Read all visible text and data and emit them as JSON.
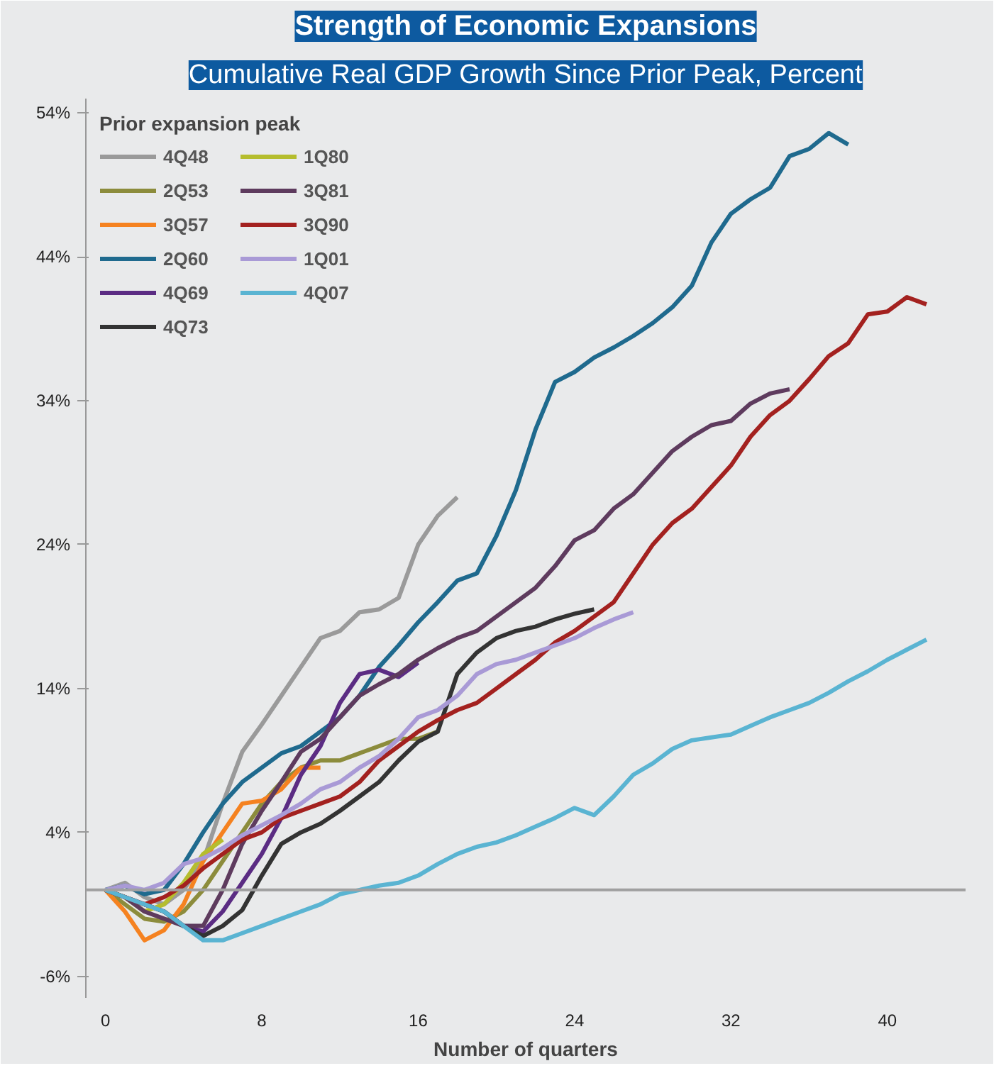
{
  "chart_data": {
    "type": "line",
    "title": "Strength of Economic Expansions",
    "subtitle": "Cumulative Real GDP Growth Since Prior Peak, Percent",
    "xlabel": "Number of quarters",
    "legend_title": "Prior expansion peak",
    "legend": "top left",
    "grid": false,
    "line_style": "solid",
    "xlim": [
      -1,
      44
    ],
    "xticks": [
      0,
      8,
      16,
      24,
      32,
      40
    ],
    "ylim": [
      -7.5,
      55
    ],
    "yticks": [
      {
        "value": -6,
        "label": "-6%"
      },
      {
        "value": 4,
        "label": "4%"
      },
      {
        "value": 14,
        "label": "14%"
      },
      {
        "value": 24,
        "label": "24%"
      },
      {
        "value": 34,
        "label": "34%"
      },
      {
        "value": 44,
        "label": "44%"
      },
      {
        "value": 54,
        "label": "54%"
      }
    ],
    "ref_lines": [
      {
        "axis": "y",
        "value": 0,
        "color": "#a0a0a0"
      }
    ],
    "series": [
      {
        "name": "4Q48",
        "color": "#9a9a9a",
        "x": [
          0,
          1,
          2,
          3,
          4,
          5,
          6,
          7,
          8,
          9,
          10,
          11,
          12,
          13,
          14,
          15,
          16,
          17,
          18
        ],
        "values": [
          0,
          0.5,
          -0.5,
          -1,
          0,
          2,
          6,
          9.6,
          11.5,
          13.5,
          15.5,
          17.5,
          18,
          19.3,
          19.5,
          20.3,
          24,
          26,
          27.3
        ]
      },
      {
        "name": "2Q53",
        "color": "#8c8c3c",
        "x": [
          0,
          1,
          2,
          3,
          4,
          5,
          6,
          7,
          8,
          9,
          10,
          11,
          12,
          13,
          14,
          15,
          16,
          17
        ],
        "values": [
          0,
          -1,
          -2,
          -2.2,
          -1.5,
          0,
          2,
          4,
          6,
          7.5,
          8.5,
          9,
          9,
          9.5,
          10,
          10.5,
          10.5,
          11
        ]
      },
      {
        "name": "3Q57",
        "color": "#f58220",
        "x": [
          0,
          1,
          2,
          3,
          4,
          5,
          6,
          7,
          8,
          9,
          10,
          11
        ],
        "values": [
          0,
          -1.5,
          -3.5,
          -2.8,
          -1,
          2,
          4,
          6,
          6.2,
          7,
          8.5,
          8.5
        ]
      },
      {
        "name": "2Q60",
        "color": "#1f6a8e",
        "x": [
          0,
          1,
          2,
          3,
          4,
          5,
          6,
          7,
          8,
          9,
          10,
          11,
          12,
          13,
          14,
          15,
          16,
          17,
          18,
          19,
          20,
          21,
          22,
          23,
          24,
          25,
          26,
          27,
          28,
          29,
          30,
          31,
          32,
          33,
          34,
          35,
          36,
          37,
          38
        ],
        "values": [
          0,
          0.3,
          -0.3,
          0,
          1.8,
          4,
          6,
          7.5,
          8.5,
          9.5,
          10,
          11,
          12,
          13.5,
          15.5,
          17,
          18.6,
          20,
          21.5,
          22,
          24.6,
          27.8,
          32,
          35.3,
          36,
          37,
          37.7,
          38.5,
          39.4,
          40.5,
          42,
          45,
          47,
          48,
          48.8,
          51,
          51.5,
          52.6,
          51.8
        ]
      },
      {
        "name": "4Q69",
        "color": "#5b2c83",
        "x": [
          0,
          1,
          2,
          3,
          4,
          5,
          6,
          7,
          8,
          9,
          10,
          11,
          12,
          13,
          14,
          15,
          16
        ],
        "values": [
          0,
          -0.5,
          -1,
          -1.5,
          -2.5,
          -2.9,
          -1.5,
          0.5,
          2.5,
          5,
          8,
          10,
          13,
          15,
          15.3,
          14.8,
          15.8
        ]
      },
      {
        "name": "4Q73",
        "color": "#333333",
        "x": [
          0,
          1,
          2,
          3,
          4,
          5,
          6,
          7,
          8,
          9,
          10,
          11,
          12,
          13,
          14,
          15,
          16,
          17,
          18,
          19,
          20,
          21,
          22,
          23,
          24,
          25
        ],
        "values": [
          0,
          -0.5,
          -1,
          -1.5,
          -2.5,
          -3.2,
          -2.5,
          -1.4,
          1,
          3.2,
          4,
          4.6,
          5.5,
          6.5,
          7.5,
          9,
          10.3,
          11,
          15,
          16.5,
          17.5,
          18,
          18.3,
          18.8,
          19.2,
          19.5
        ]
      },
      {
        "name": "1Q80",
        "color": "#b5bd2e",
        "x": [
          0,
          1,
          2,
          3,
          4,
          5,
          6
        ],
        "values": [
          0,
          -0.5,
          -1.5,
          -1,
          0.5,
          2.5,
          3.5
        ]
      },
      {
        "name": "3Q81",
        "color": "#5e3b5e",
        "x": [
          0,
          1,
          2,
          3,
          4,
          5,
          6,
          7,
          8,
          9,
          10,
          11,
          12,
          13,
          14,
          15,
          16,
          17,
          18,
          19,
          20,
          21,
          22,
          23,
          24,
          25,
          26,
          27,
          28,
          29,
          30,
          31,
          32,
          33,
          34,
          35
        ],
        "values": [
          0,
          -0.5,
          -1.5,
          -2,
          -2.5,
          -2.5,
          0,
          3.2,
          5.5,
          7.5,
          9.6,
          10.5,
          12,
          13.5,
          14.3,
          15,
          16,
          16.8,
          17.5,
          18,
          19,
          20,
          21,
          22.5,
          24.3,
          25,
          26.5,
          27.5,
          29,
          30.5,
          31.5,
          32.3,
          32.6,
          33.8,
          34.5,
          34.8
        ]
      },
      {
        "name": "3Q90",
        "color": "#a3211f",
        "x": [
          0,
          1,
          2,
          3,
          4,
          5,
          6,
          7,
          8,
          9,
          10,
          11,
          12,
          13,
          14,
          15,
          16,
          17,
          18,
          19,
          20,
          21,
          22,
          23,
          24,
          25,
          26,
          27,
          28,
          29,
          30,
          31,
          32,
          33,
          34,
          35,
          36,
          37,
          38,
          39,
          40,
          41,
          42
        ],
        "values": [
          0,
          -0.5,
          -1,
          -0.5,
          0.3,
          1.5,
          2.5,
          3.5,
          4,
          5,
          5.5,
          6,
          6.5,
          7.5,
          9,
          10,
          11,
          11.8,
          12.5,
          13,
          14,
          15,
          16,
          17.2,
          18,
          19,
          20,
          22,
          24,
          25.5,
          26.5,
          28,
          29.5,
          31.5,
          33,
          34,
          35.5,
          37.1,
          38,
          40,
          40.2,
          41.2,
          40.7
        ]
      },
      {
        "name": "1Q01",
        "color": "#a99ad6",
        "x": [
          0,
          1,
          2,
          3,
          4,
          5,
          6,
          7,
          8,
          9,
          10,
          11,
          12,
          13,
          14,
          15,
          16,
          17,
          18,
          19,
          20,
          21,
          22,
          23,
          24,
          25,
          26,
          27
        ],
        "values": [
          0,
          0.3,
          0,
          0.5,
          1.8,
          2.2,
          2.9,
          3.8,
          4.5,
          5.2,
          6,
          7,
          7.5,
          8.5,
          9.3,
          10.5,
          12,
          12.5,
          13.5,
          15,
          15.7,
          16,
          16.5,
          17,
          17.5,
          18.2,
          18.8,
          19.3
        ]
      },
      {
        "name": "4Q07",
        "color": "#5ab4d2",
        "x": [
          0,
          1,
          2,
          3,
          4,
          5,
          6,
          7,
          8,
          9,
          10,
          11,
          12,
          13,
          14,
          15,
          16,
          17,
          18,
          19,
          20,
          21,
          22,
          23,
          24,
          25,
          26,
          27,
          28,
          29,
          30,
          31,
          32,
          33,
          34,
          35,
          36,
          37,
          38,
          39,
          40,
          41,
          42
        ],
        "values": [
          0,
          -0.5,
          -1,
          -1.5,
          -2.5,
          -3.5,
          -3.5,
          -3,
          -2.5,
          -2,
          -1.5,
          -1,
          -0.3,
          0,
          0.3,
          0.5,
          1,
          1.8,
          2.5,
          3,
          3.3,
          3.8,
          4.4,
          5,
          5.7,
          5.2,
          6.5,
          8,
          8.8,
          9.8,
          10.4,
          10.6,
          10.8,
          11.4,
          12,
          12.5,
          13,
          13.7,
          14.5,
          15.2,
          16,
          16.7,
          17.4
        ]
      }
    ]
  }
}
